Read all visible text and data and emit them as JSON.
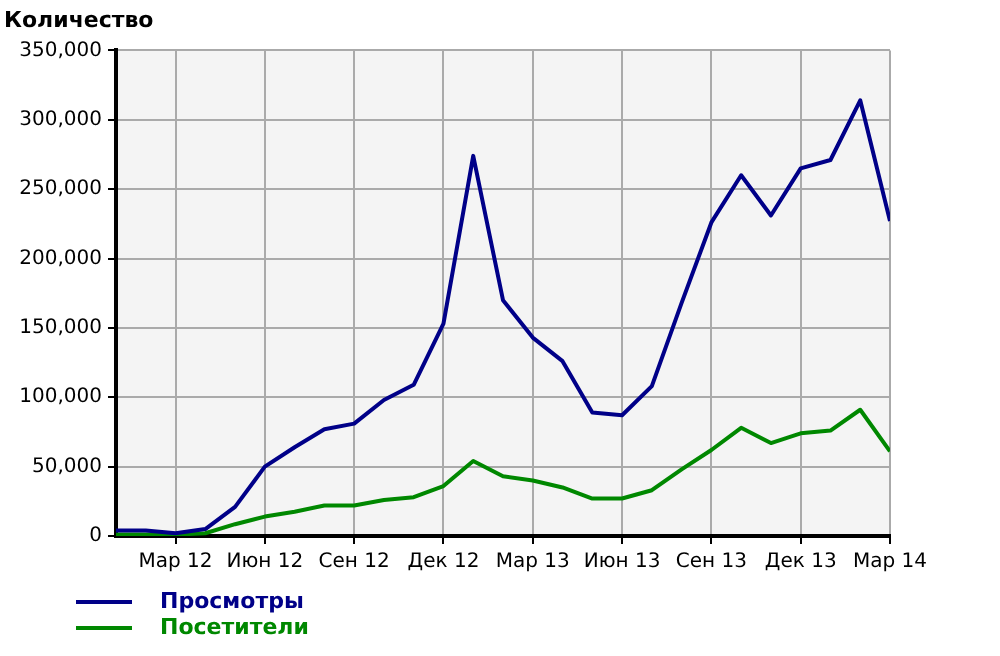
{
  "chart_data": {
    "type": "line",
    "ylabel": "Количество",
    "x": [
      "2012-01",
      "2012-02",
      "2012-03",
      "2012-04",
      "2012-05",
      "2012-06",
      "2012-07",
      "2012-08",
      "2012-09",
      "2012-10",
      "2012-11",
      "2012-12",
      "2013-01",
      "2013-02",
      "2013-03",
      "2013-04",
      "2013-05",
      "2013-06",
      "2013-07",
      "2013-08",
      "2013-09",
      "2013-10",
      "2013-11",
      "2013-12",
      "2014-01",
      "2014-02",
      "2014-03"
    ],
    "series": [
      {
        "name": "Просмотры",
        "color": "#000088",
        "values": [
          4000,
          4000,
          2000,
          5000,
          21000,
          50000,
          64000,
          77000,
          81000,
          98000,
          109000,
          153000,
          274000,
          170000,
          143000,
          126000,
          89000,
          87000,
          108000,
          168000,
          226000,
          260000,
          231000,
          265000,
          271000,
          314000,
          227000
        ]
      },
      {
        "name": "Посетители",
        "color": "#008800",
        "values": [
          1000,
          1000,
          1000,
          2000,
          8500,
          14000,
          17500,
          22000,
          22000,
          26000,
          28000,
          36000,
          54000,
          43000,
          40000,
          35000,
          27000,
          27000,
          33000,
          48000,
          62000,
          78000,
          67000,
          74000,
          76000,
          91000,
          61000
        ]
      }
    ],
    "xlim": [
      "2012-01",
      "2014-03"
    ],
    "xticks": [
      {
        "value": "2012-03",
        "label": "Мар 12"
      },
      {
        "value": "2012-06",
        "label": "Июн 12"
      },
      {
        "value": "2012-09",
        "label": "Сен 12"
      },
      {
        "value": "2012-12",
        "label": "Дек 12"
      },
      {
        "value": "2013-03",
        "label": "Мар 13"
      },
      {
        "value": "2013-06",
        "label": "Июн 13"
      },
      {
        "value": "2013-09",
        "label": "Сен 13"
      },
      {
        "value": "2013-12",
        "label": "Дек 13"
      },
      {
        "value": "2014-03",
        "label": "Мар 14"
      }
    ],
    "ylim": [
      0,
      350000
    ],
    "yticks": [
      {
        "value": 0,
        "label": "0"
      },
      {
        "value": 50000,
        "label": "50,000"
      },
      {
        "value": 100000,
        "label": "100,000"
      },
      {
        "value": 150000,
        "label": "150,000"
      },
      {
        "value": 200000,
        "label": "200,000"
      },
      {
        "value": 250000,
        "label": "250,000"
      },
      {
        "value": 300000,
        "label": "300,000"
      },
      {
        "value": 350000,
        "label": "350,000"
      }
    ],
    "grid": true,
    "legend": "bottom left",
    "marker": "none",
    "line_style": "solid"
  }
}
